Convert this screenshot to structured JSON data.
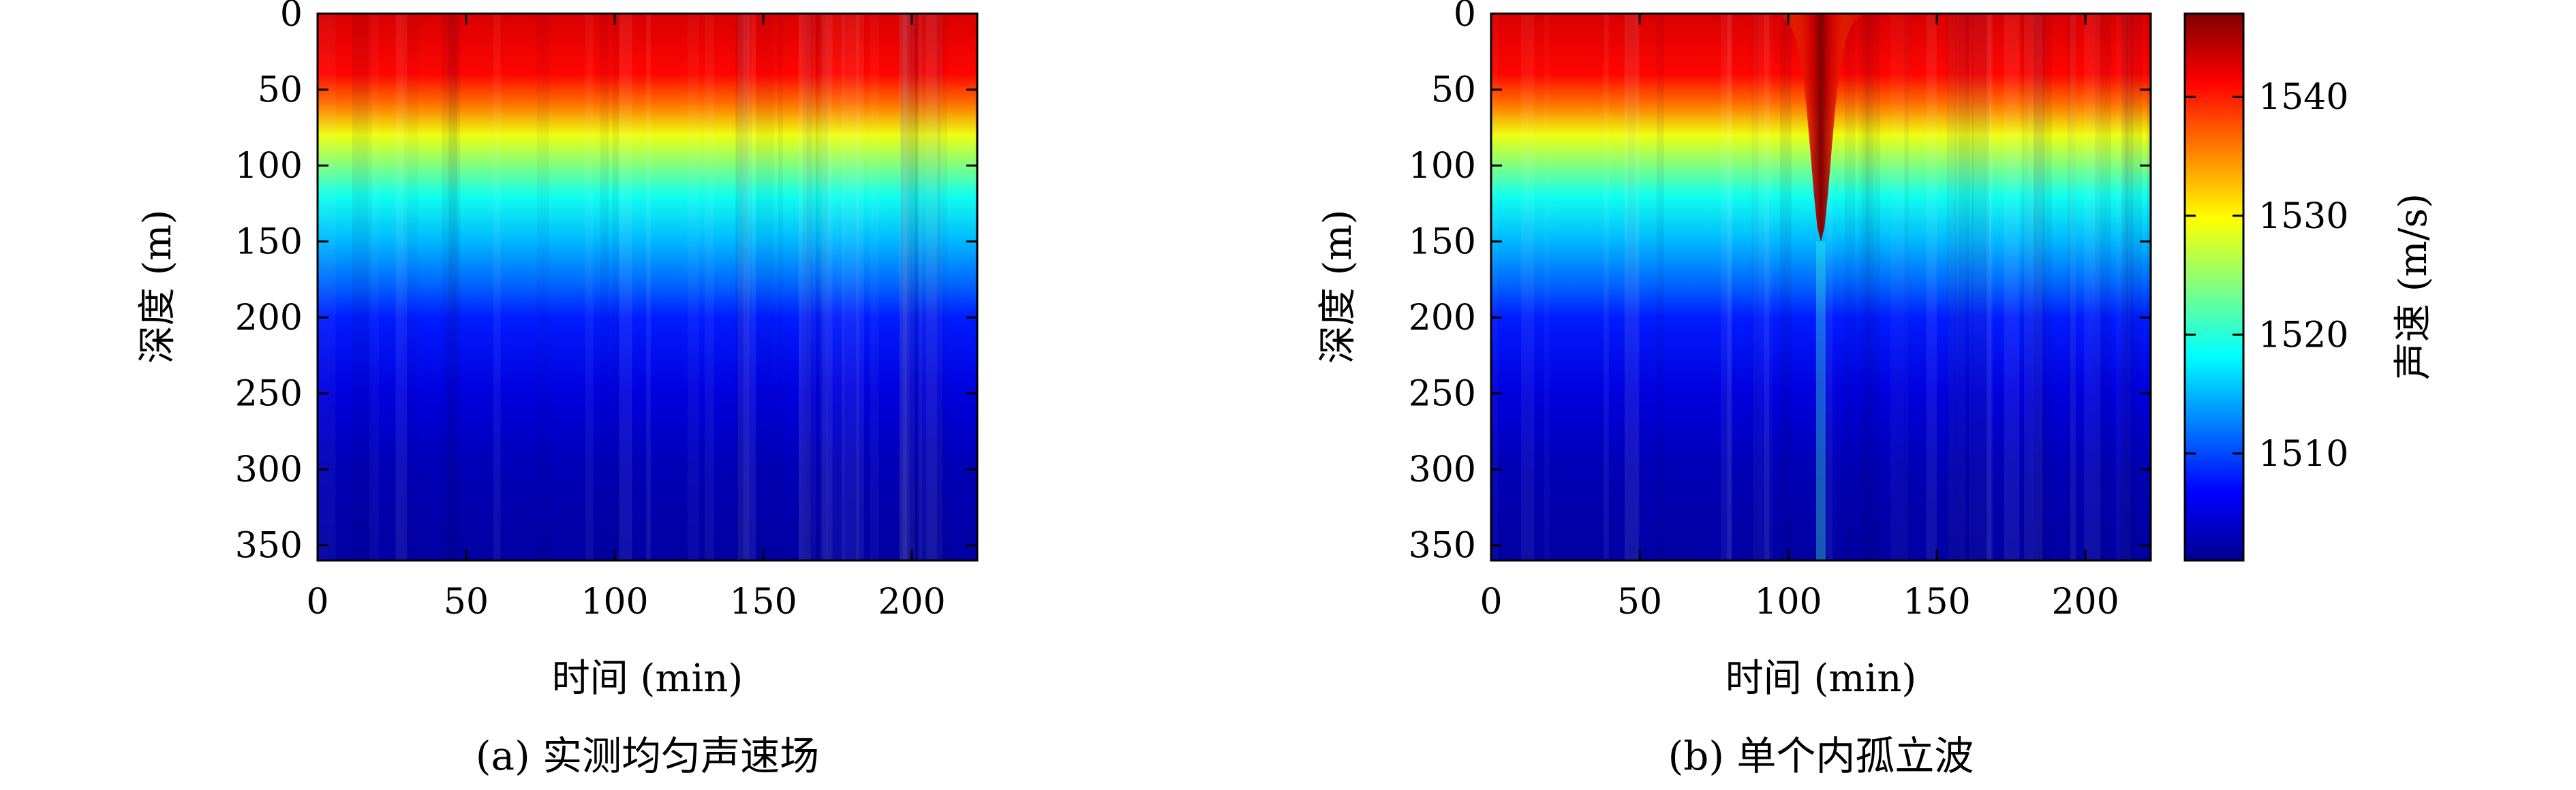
{
  "colormap": [
    "#00008f",
    "#0000ff",
    "#0080ff",
    "#00ffff",
    "#80ff80",
    "#ffff00",
    "#ff8000",
    "#ff0000",
    "#800000"
  ],
  "chart_data": [
    {
      "type": "heatmap",
      "caption": "(a) 实测均匀声速场",
      "xlabel": "时间 (min)",
      "ylabel": "深度 (m)",
      "xlim": [
        0,
        222
      ],
      "ylim": [
        0,
        360
      ],
      "y_reversed": true,
      "xticks": [
        "0",
        "50",
        "100",
        "150",
        "200"
      ],
      "yticks": [
        "0",
        "50",
        "100",
        "150",
        "200",
        "250",
        "300",
        "350"
      ],
      "depth_profile": {
        "depth_m": [
          0,
          40,
          60,
          80,
          100,
          120,
          150,
          180,
          200,
          250,
          300,
          360
        ],
        "sound_speed_m_s": [
          1543,
          1541,
          1536,
          1529,
          1524,
          1519,
          1515,
          1511,
          1508,
          1505,
          1503,
          1502
        ]
      },
      "features": [
        "warm surface layer ~0–80 m",
        "strong thermocline ~60–150 m",
        "cold bottom water below ~250 m"
      ]
    },
    {
      "type": "heatmap",
      "caption": "(b) 单个内孤立波",
      "xlabel": "时间 (min)",
      "ylabel": "深度 (m)",
      "xlim": [
        0,
        222
      ],
      "ylim": [
        0,
        360
      ],
      "y_reversed": true,
      "xticks": [
        "0",
        "50",
        "100",
        "150",
        "200"
      ],
      "yticks": [
        "0",
        "50",
        "100",
        "150",
        "200",
        "250",
        "300",
        "350"
      ],
      "depth_profile": {
        "depth_m": [
          0,
          40,
          60,
          80,
          100,
          120,
          150,
          180,
          200,
          250,
          300,
          360
        ],
        "sound_speed_m_s": [
          1543,
          1541,
          1536,
          1529,
          1524,
          1519,
          1515,
          1511,
          1508,
          1505,
          1503,
          1502
        ]
      },
      "soliton": {
        "center_time_min": 111,
        "half_width_min": 8,
        "max_depression_m": 150
      },
      "colorbar": {
        "label": "声速 (m/s)",
        "range": [
          1501,
          1547
        ],
        "ticks": [
          "1510",
          "1520",
          "1530",
          "1540"
        ]
      }
    }
  ]
}
